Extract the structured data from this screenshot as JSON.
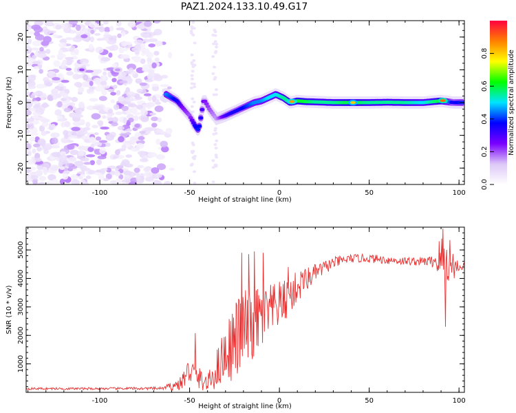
{
  "figure": {
    "title": "PAZ1.2024.133.10.49.G17"
  },
  "chart_data": [
    {
      "type": "heatmap",
      "title": "PAZ1.2024.133.10.49.G17",
      "xlabel": "Height of straight line (km)",
      "ylabel": "Frequency (Hz)",
      "xlim": [
        -141,
        103
      ],
      "ylim": [
        -25,
        25
      ],
      "xticks": [
        -100,
        -50,
        0,
        50,
        100
      ],
      "yticks": [
        -20,
        -10,
        0,
        10,
        20
      ],
      "colorbar": {
        "label": "Normalized spectral amplitude",
        "range": [
          0.0,
          1.0
        ],
        "ticks": [
          "0.0",
          "0.2",
          "0.4",
          "0.6",
          "0.8"
        ],
        "colors": [
          "#ffffff",
          "#dcc7f7",
          "#7a00ff",
          "#0000ff",
          "#00e5ff",
          "#00ff00",
          "#ffff00",
          "#ff8000",
          "#ff0040"
        ]
      },
      "ridge": [
        {
          "x": -63,
          "y": 2.5,
          "a": 0.45
        },
        {
          "x": -60,
          "y": 1.5,
          "a": 0.4
        },
        {
          "x": -57,
          "y": 0.5,
          "a": 0.35
        },
        {
          "x": -54,
          "y": -1.5,
          "a": 0.25
        },
        {
          "x": -50,
          "y": -4,
          "a": 0.2
        },
        {
          "x": -47,
          "y": -7,
          "a": 0.35
        },
        {
          "x": -45,
          "y": -8.5,
          "a": 0.4
        },
        {
          "x": -42,
          "y": 1,
          "a": 0.25
        },
        {
          "x": -39,
          "y": -2,
          "a": 0.2
        },
        {
          "x": -35,
          "y": -5,
          "a": 0.15
        },
        {
          "x": -30,
          "y": -4,
          "a": 0.3
        },
        {
          "x": -26,
          "y": -3,
          "a": 0.35
        },
        {
          "x": -22,
          "y": -2,
          "a": 0.35
        },
        {
          "x": -18,
          "y": -1,
          "a": 0.4
        },
        {
          "x": -14,
          "y": 0,
          "a": 0.45
        },
        {
          "x": -10,
          "y": 0.5,
          "a": 0.45
        },
        {
          "x": -6,
          "y": 1.5,
          "a": 0.5
        },
        {
          "x": -2,
          "y": 2.5,
          "a": 0.5
        },
        {
          "x": 2,
          "y": 1.5,
          "a": 0.55
        },
        {
          "x": 6,
          "y": 0,
          "a": 0.55
        },
        {
          "x": 10,
          "y": 0.5,
          "a": 0.6
        },
        {
          "x": 14,
          "y": 0.3,
          "a": 0.6
        },
        {
          "x": 20,
          "y": 0.2,
          "a": 0.55
        },
        {
          "x": 30,
          "y": 0,
          "a": 0.55
        },
        {
          "x": 40,
          "y": 0,
          "a": 0.6
        },
        {
          "x": 50,
          "y": 0,
          "a": 0.55
        },
        {
          "x": 60,
          "y": 0.1,
          "a": 0.55
        },
        {
          "x": 70,
          "y": 0,
          "a": 0.55
        },
        {
          "x": 80,
          "y": 0,
          "a": 0.5
        },
        {
          "x": 90,
          "y": 0.5,
          "a": 0.6
        },
        {
          "x": 97,
          "y": 0,
          "a": 0.35
        },
        {
          "x": 102,
          "y": 0,
          "a": 0.4
        }
      ],
      "hotspots": [
        {
          "x": -110,
          "y": 10,
          "a": 0.2
        },
        {
          "x": -90,
          "y": 10,
          "a": 0.15
        },
        {
          "x": 7,
          "y": 0.3,
          "a": 0.85
        },
        {
          "x": 41,
          "y": 0,
          "a": 0.8
        },
        {
          "x": 91,
          "y": 0.6,
          "a": 0.9
        }
      ]
    },
    {
      "type": "line",
      "xlabel": "Height of straight line (km)",
      "ylabel": "SNR (10 * v/v)",
      "xlim": [
        -141,
        103
      ],
      "ylim": [
        0,
        5800
      ],
      "xticks": [
        -100,
        -50,
        0,
        50,
        100
      ],
      "yticks": [
        1000,
        2000,
        3000,
        4000,
        5000
      ],
      "line_color": "#e83030",
      "envelope": [
        {
          "x": -141,
          "y": 130,
          "noise": 40
        },
        {
          "x": -100,
          "y": 130,
          "noise": 40
        },
        {
          "x": -65,
          "y": 140,
          "noise": 50
        },
        {
          "x": -55,
          "y": 300,
          "noise": 250
        },
        {
          "x": -50,
          "y": 800,
          "noise": 500
        },
        {
          "x": -45,
          "y": 500,
          "noise": 400
        },
        {
          "x": -40,
          "y": 300,
          "noise": 300
        },
        {
          "x": -35,
          "y": 800,
          "noise": 700
        },
        {
          "x": -30,
          "y": 1400,
          "noise": 1000
        },
        {
          "x": -25,
          "y": 1800,
          "noise": 1400
        },
        {
          "x": -20,
          "y": 2200,
          "noise": 1500
        },
        {
          "x": -15,
          "y": 2400,
          "noise": 1400
        },
        {
          "x": -10,
          "y": 2600,
          "noise": 1200
        },
        {
          "x": -5,
          "y": 2800,
          "noise": 1000
        },
        {
          "x": 0,
          "y": 3100,
          "noise": 800
        },
        {
          "x": 5,
          "y": 3300,
          "noise": 700
        },
        {
          "x": 10,
          "y": 3700,
          "noise": 600
        },
        {
          "x": 20,
          "y": 4200,
          "noise": 300
        },
        {
          "x": 30,
          "y": 4550,
          "noise": 200
        },
        {
          "x": 40,
          "y": 4700,
          "noise": 150
        },
        {
          "x": 50,
          "y": 4700,
          "noise": 150
        },
        {
          "x": 60,
          "y": 4650,
          "noise": 150
        },
        {
          "x": 70,
          "y": 4600,
          "noise": 150
        },
        {
          "x": 80,
          "y": 4600,
          "noise": 150
        },
        {
          "x": 85,
          "y": 4600,
          "noise": 200
        },
        {
          "x": 90,
          "y": 4700,
          "noise": 900
        },
        {
          "x": 95,
          "y": 4500,
          "noise": 700
        },
        {
          "x": 100,
          "y": 4400,
          "noise": 200
        },
        {
          "x": 103,
          "y": 4450,
          "noise": 150
        }
      ],
      "spikes": [
        {
          "x": -47,
          "y": 2080
        },
        {
          "x": -21,
          "y": 4900
        },
        {
          "x": -17,
          "y": 4850
        },
        {
          "x": -14,
          "y": 4950
        },
        {
          "x": -9,
          "y": 4900
        },
        {
          "x": 5,
          "y": 4400
        },
        {
          "x": 13,
          "y": 4200
        },
        {
          "x": 91,
          "y": 5750
        },
        {
          "x": 92.5,
          "y": 2300
        },
        {
          "x": 95,
          "y": 5350
        }
      ]
    }
  ]
}
